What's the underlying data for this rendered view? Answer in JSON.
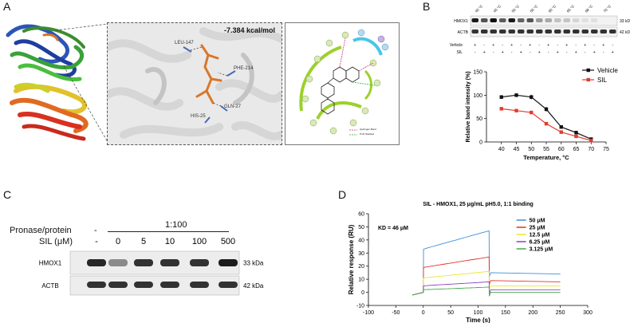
{
  "panels": {
    "A": {
      "letter": "A",
      "binding_energy": "-7.384 kcal/mol",
      "residues": [
        "LEU-147",
        "PHE-214",
        "GLN-27",
        "HIS-25"
      ],
      "legend": [
        "Hydrogen Bond",
        "Pi-Pi Stacked"
      ]
    },
    "B": {
      "letter": "B",
      "temperatures": [
        "40 °C",
        "45 °C",
        "50 °C",
        "55 °C",
        "60 °C",
        "65 °C",
        "68 °C",
        "70 °C"
      ],
      "blot_rows": [
        "HMOX1",
        "ACTB"
      ],
      "kda": [
        "33 kDa",
        "42 kDa"
      ],
      "treatment_rows": [
        {
          "label": "Vehicle",
          "signs": [
            "+",
            "-",
            "+",
            "-",
            "+",
            "-",
            "+",
            "-",
            "+",
            "-",
            "+",
            "-",
            "+",
            "-",
            "+",
            "-"
          ]
        },
        {
          "label": "SIL",
          "signs": [
            "-",
            "+",
            "-",
            "+",
            "-",
            "+",
            "-",
            "+",
            "-",
            "+",
            "-",
            "+",
            "-",
            "+",
            "-",
            "+"
          ]
        }
      ]
    },
    "C": {
      "letter": "C",
      "pronase_label": "Pronase/protein",
      "pronase_dash": "-",
      "ratio": "1:100",
      "sil_label": "SIL (μM)",
      "sil_values": [
        "-",
        "0",
        "5",
        "10",
        "100",
        "500"
      ],
      "blot_rows": [
        "HMOX1",
        "ACTB"
      ],
      "kda": [
        "33 kDa",
        "42 kDa"
      ]
    },
    "D": {
      "letter": "D",
      "kd_text": "KD = 46 μM"
    }
  },
  "chart_data": [
    {
      "type": "line",
      "panel": "B",
      "title": "",
      "xlabel": "Temperature, °C",
      "ylabel": "Relative band intensity (%)",
      "xlim": [
        35,
        75
      ],
      "ylim": [
        0,
        150
      ],
      "xticks": [
        40,
        45,
        50,
        55,
        60,
        65,
        70,
        75
      ],
      "yticks": [
        0,
        50,
        100,
        150
      ],
      "legend_position": "top-right",
      "series": [
        {
          "name": "Vehicle",
          "color": "#111111",
          "x": [
            40,
            45,
            50,
            55,
            60,
            65,
            70
          ],
          "y": [
            96,
            100,
            96,
            70,
            32,
            20,
            6
          ],
          "err": [
            4,
            4,
            5,
            5,
            2,
            2,
            2
          ]
        },
        {
          "name": "SIL",
          "color": "#e23b2e",
          "x": [
            40,
            45,
            50,
            55,
            60,
            65,
            70
          ],
          "y": [
            71,
            67,
            63,
            39,
            21,
            12,
            3
          ],
          "err": [
            1,
            1,
            2,
            2,
            2,
            2,
            1
          ]
        }
      ]
    },
    {
      "type": "line",
      "panel": "D",
      "title": "SIL - HMOX1, 25 μg/mL pH5.0, 1:1 binding",
      "xlabel": "Time (s)",
      "ylabel": "Relative response (RU)",
      "xlim": [
        -100,
        300
      ],
      "ylim": [
        -10,
        60
      ],
      "xticks": [
        -100,
        -50,
        0,
        50,
        100,
        150,
        200,
        250,
        300
      ],
      "yticks": [
        -10,
        0,
        10,
        20,
        30,
        40,
        50,
        60
      ],
      "legend_position": "top-right",
      "series": [
        {
          "name": "50 μM",
          "color": "#3d8fd8",
          "assoc": [
            33,
            47
          ],
          "dissoc": [
            15,
            14
          ]
        },
        {
          "name": "25 μM",
          "color": "#e4312a",
          "assoc": [
            19,
            27
          ],
          "dissoc": [
            9,
            8
          ]
        },
        {
          "name": "12.5 μM",
          "color": "#e8e82e",
          "assoc": [
            11,
            16
          ],
          "dissoc": [
            5,
            5
          ]
        },
        {
          "name": "6.25 μM",
          "color": "#8e3fbf",
          "assoc": [
            5,
            8
          ],
          "dissoc": [
            2,
            2
          ]
        },
        {
          "name": "3.125 μM",
          "color": "#46a84b",
          "assoc": [
            2,
            4
          ],
          "dissoc": [
            0,
            0
          ]
        }
      ]
    }
  ]
}
